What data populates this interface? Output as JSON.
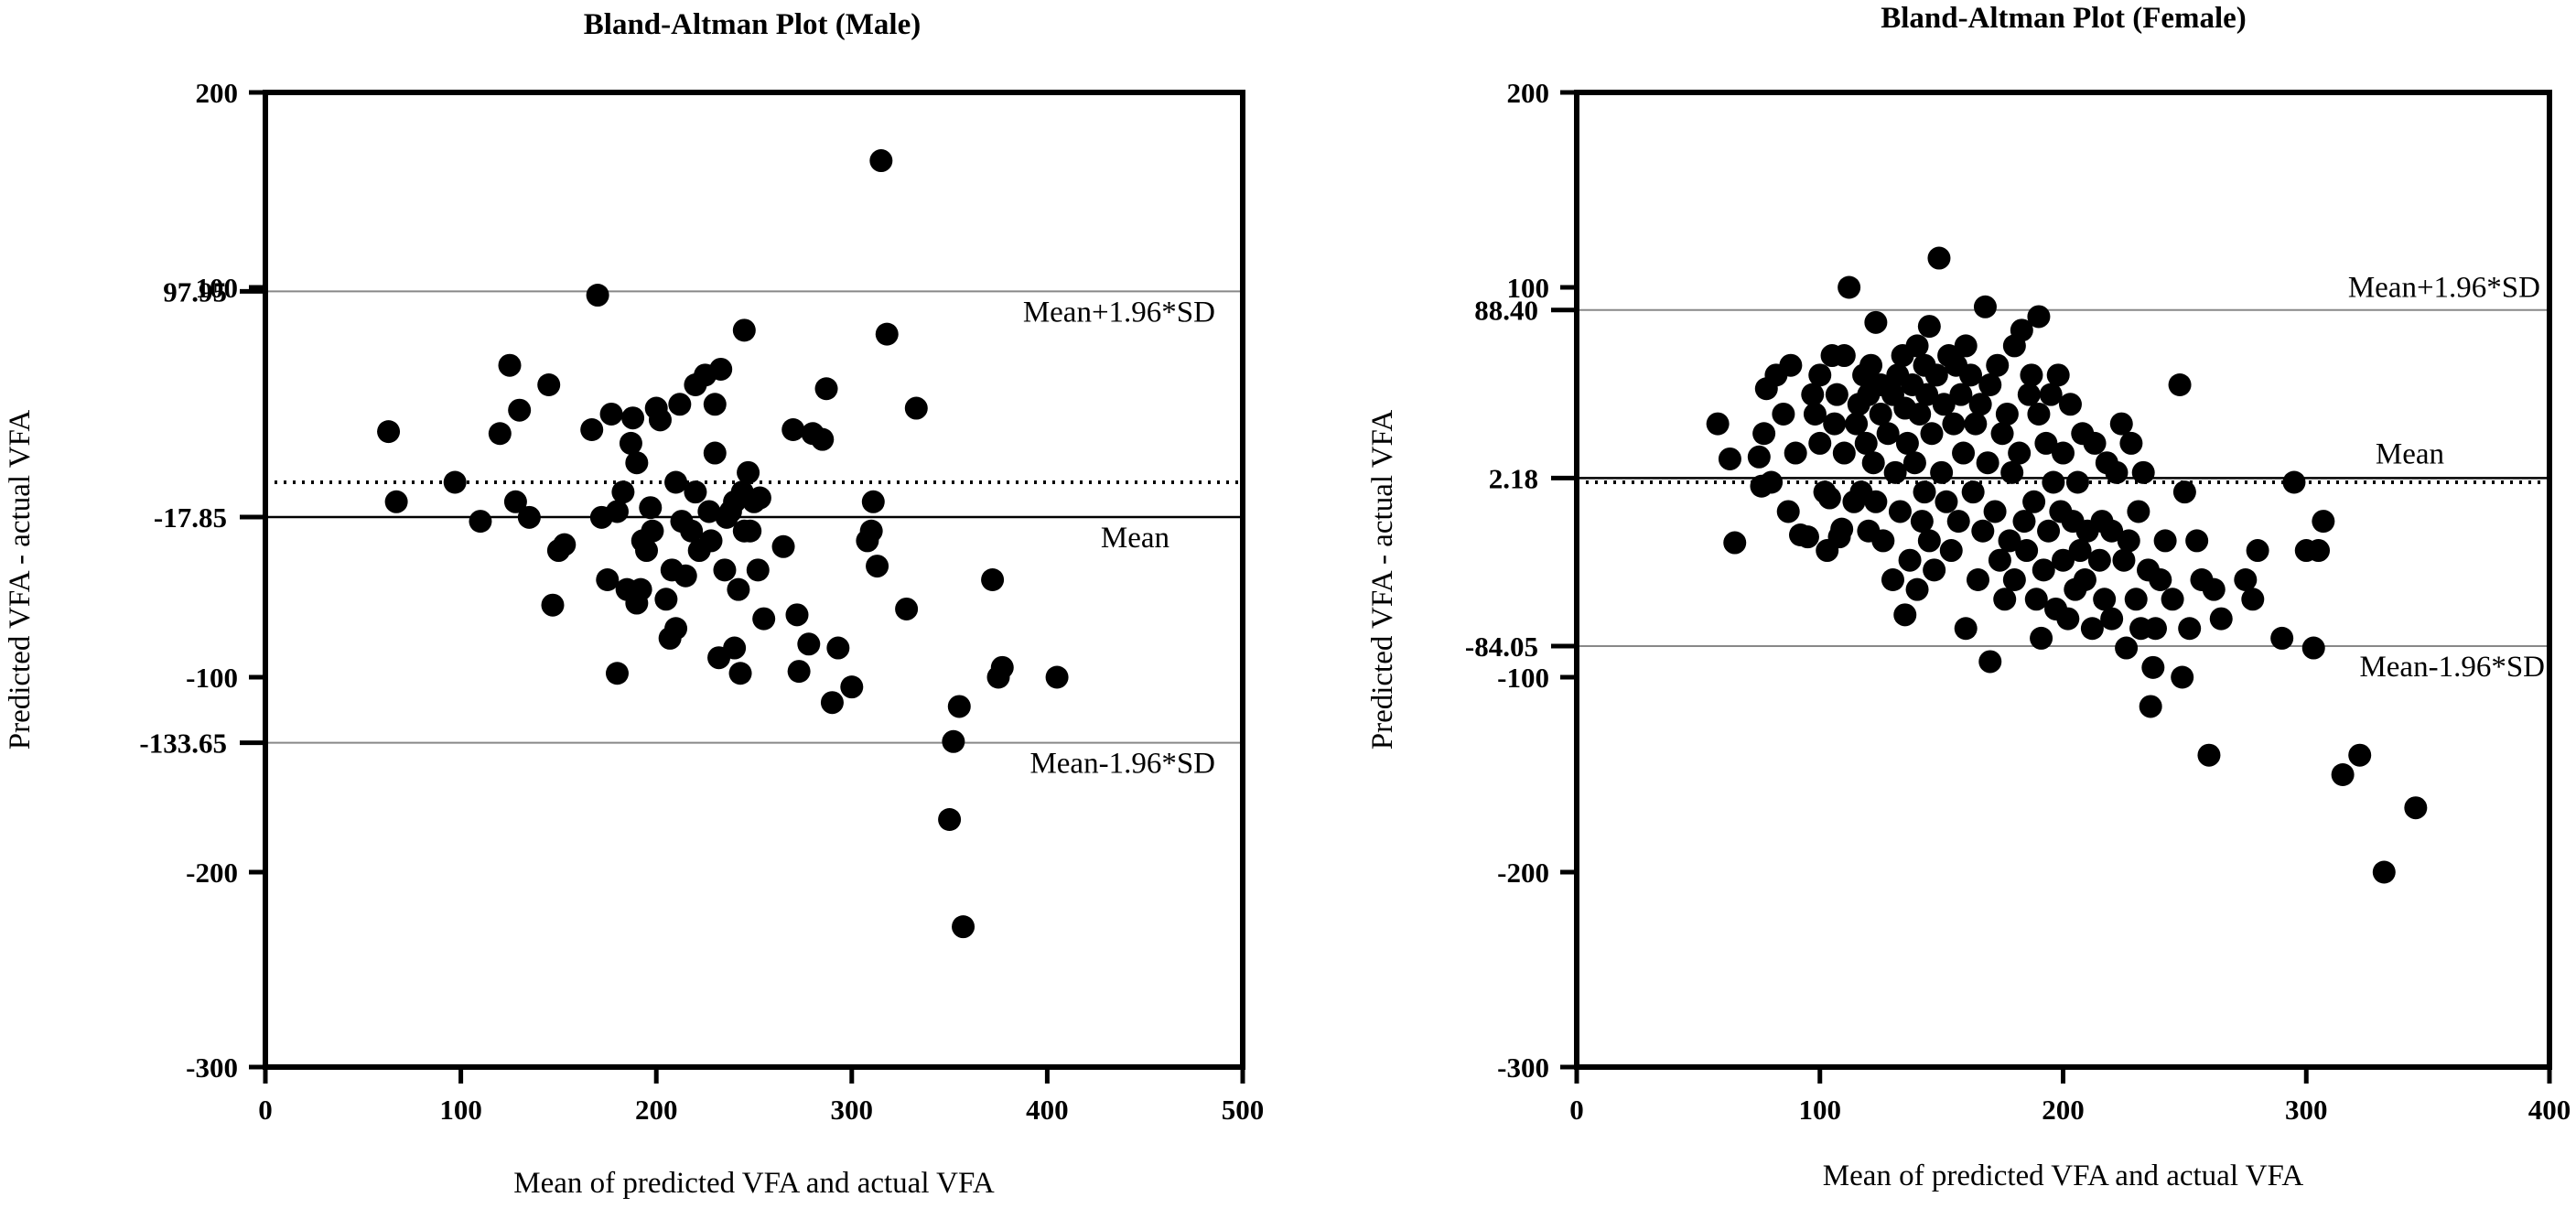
{
  "chart_data": [
    {
      "type": "scatter",
      "title": "Bland-Altman Plot (Male)",
      "xlabel": "Mean of predicted VFA and actual VFA",
      "ylabel": "Predicted VFA - actual VFA",
      "xlim": [
        0,
        500
      ],
      "ylim": [
        -300,
        200
      ],
      "xticks": [
        "0",
        "100",
        "200",
        "300",
        "400",
        "500"
      ],
      "yticks": [
        "-300",
        "-200",
        "-100",
        "100",
        "200"
      ],
      "hlines": [
        {
          "id": "upper",
          "value": 97.95,
          "label": "97.95",
          "text": "Mean+1.96*SD",
          "style": "thin-grey"
        },
        {
          "id": "mean",
          "value": -17.85,
          "label": "-17.85",
          "text": "Mean",
          "style": "solid"
        },
        {
          "id": "lower",
          "value": -133.65,
          "label": "-133.65",
          "text": "Mean-1.96*SD",
          "style": "thin-grey"
        },
        {
          "id": "zero",
          "value": 0,
          "label": "",
          "text": "",
          "style": "dotted"
        }
      ],
      "grid": false,
      "points": [
        [
          63,
          26
        ],
        [
          67,
          -10
        ],
        [
          97,
          0
        ],
        [
          110,
          -20
        ],
        [
          120,
          25
        ],
        [
          125,
          60
        ],
        [
          128,
          -10
        ],
        [
          130,
          37
        ],
        [
          135,
          -18
        ],
        [
          145,
          50
        ],
        [
          147,
          -63
        ],
        [
          150,
          -35
        ],
        [
          153,
          -32
        ],
        [
          167,
          27
        ],
        [
          170,
          96
        ],
        [
          172,
          -18
        ],
        [
          175,
          -50
        ],
        [
          177,
          35
        ],
        [
          180,
          -15
        ],
        [
          180,
          -98
        ],
        [
          183,
          -5
        ],
        [
          185,
          -55
        ],
        [
          187,
          20
        ],
        [
          188,
          33
        ],
        [
          190,
          -62
        ],
        [
          190,
          10
        ],
        [
          192,
          -55
        ],
        [
          193,
          -30
        ],
        [
          195,
          -35
        ],
        [
          197,
          -13
        ],
        [
          198,
          -25
        ],
        [
          200,
          38
        ],
        [
          202,
          32
        ],
        [
          205,
          -60
        ],
        [
          207,
          -80
        ],
        [
          208,
          -45
        ],
        [
          210,
          0
        ],
        [
          210,
          -75
        ],
        [
          212,
          40
        ],
        [
          213,
          -20
        ],
        [
          215,
          -48
        ],
        [
          218,
          -25
        ],
        [
          220,
          50
        ],
        [
          220,
          -5
        ],
        [
          222,
          -35
        ],
        [
          225,
          55
        ],
        [
          227,
          -15
        ],
        [
          228,
          -30
        ],
        [
          230,
          40
        ],
        [
          230,
          15
        ],
        [
          232,
          -90
        ],
        [
          233,
          58
        ],
        [
          235,
          -45
        ],
        [
          236,
          -18
        ],
        [
          238,
          -15
        ],
        [
          240,
          -85
        ],
        [
          240,
          -10
        ],
        [
          242,
          -55
        ],
        [
          243,
          -98
        ],
        [
          244,
          -5
        ],
        [
          245,
          -25
        ],
        [
          245,
          78
        ],
        [
          247,
          5
        ],
        [
          248,
          -25
        ],
        [
          250,
          -10
        ],
        [
          252,
          -45
        ],
        [
          253,
          -8
        ],
        [
          255,
          -70
        ],
        [
          265,
          -33
        ],
        [
          270,
          27
        ],
        [
          272,
          -68
        ],
        [
          273,
          -97
        ],
        [
          278,
          -83
        ],
        [
          280,
          25
        ],
        [
          285,
          22
        ],
        [
          287,
          48
        ],
        [
          290,
          -113
        ],
        [
          293,
          -85
        ],
        [
          300,
          -105
        ],
        [
          308,
          -30
        ],
        [
          310,
          -25
        ],
        [
          311,
          -10
        ],
        [
          313,
          -43
        ],
        [
          315,
          165
        ],
        [
          318,
          76
        ],
        [
          328,
          -65
        ],
        [
          333,
          38
        ],
        [
          350,
          -173
        ],
        [
          352,
          -133
        ],
        [
          355,
          -115
        ],
        [
          357,
          -228
        ],
        [
          372,
          -50
        ],
        [
          375,
          -100
        ],
        [
          377,
          -95
        ],
        [
          405,
          -100
        ]
      ]
    },
    {
      "type": "scatter",
      "title": "Bland-Altman Plot (Female)",
      "xlabel": "Mean of predicted VFA and actual VFA",
      "ylabel": "Predicted VFA - actual VFA",
      "xlim": [
        0,
        400
      ],
      "ylim": [
        -300,
        200
      ],
      "xticks": [
        "0",
        "100",
        "200",
        "300",
        "400"
      ],
      "yticks": [
        "-300",
        "-200",
        "-100",
        "100",
        "200"
      ],
      "hlines": [
        {
          "id": "upper",
          "value": 88.4,
          "label": "88.40",
          "text": "Mean+1.96*SD",
          "style": "thin-grey"
        },
        {
          "id": "mean",
          "value": 2.18,
          "label": "2.18",
          "text": "Mean",
          "style": "solid"
        },
        {
          "id": "lower",
          "value": -84.05,
          "label": "-84.05",
          "text": "Mean-1.96*SD",
          "style": "thin-grey"
        },
        {
          "id": "zero",
          "value": 0,
          "label": "",
          "text": "",
          "style": "dotted"
        }
      ],
      "grid": false,
      "points": [
        [
          58,
          30
        ],
        [
          63,
          12
        ],
        [
          65,
          -31
        ],
        [
          75,
          13
        ],
        [
          76,
          -2
        ],
        [
          77,
          25
        ],
        [
          78,
          48
        ],
        [
          80,
          0
        ],
        [
          82,
          55
        ],
        [
          85,
          35
        ],
        [
          87,
          -15
        ],
        [
          88,
          60
        ],
        [
          90,
          15
        ],
        [
          92,
          -27
        ],
        [
          95,
          -28
        ],
        [
          97,
          45
        ],
        [
          98,
          35
        ],
        [
          100,
          20
        ],
        [
          100,
          55
        ],
        [
          102,
          -5
        ],
        [
          103,
          -35
        ],
        [
          104,
          -8
        ],
        [
          105,
          65
        ],
        [
          106,
          30
        ],
        [
          107,
          45
        ],
        [
          108,
          -28
        ],
        [
          109,
          -24
        ],
        [
          110,
          15
        ],
        [
          110,
          65
        ],
        [
          112,
          100
        ],
        [
          114,
          -10
        ],
        [
          115,
          30
        ],
        [
          116,
          40
        ],
        [
          117,
          -5
        ],
        [
          118,
          55
        ],
        [
          119,
          20
        ],
        [
          120,
          45
        ],
        [
          120,
          -25
        ],
        [
          121,
          60
        ],
        [
          122,
          10
        ],
        [
          123,
          -10
        ],
        [
          123,
          82
        ],
        [
          125,
          35
        ],
        [
          125,
          50
        ],
        [
          126,
          -30
        ],
        [
          128,
          25
        ],
        [
          130,
          45
        ],
        [
          130,
          -50
        ],
        [
          131,
          5
        ],
        [
          132,
          55
        ],
        [
          133,
          -15
        ],
        [
          134,
          65
        ],
        [
          135,
          38
        ],
        [
          135,
          -68
        ],
        [
          136,
          20
        ],
        [
          137,
          -40
        ],
        [
          138,
          50
        ],
        [
          139,
          10
        ],
        [
          140,
          -55
        ],
        [
          140,
          70
        ],
        [
          141,
          35
        ],
        [
          142,
          -20
        ],
        [
          143,
          60
        ],
        [
          143,
          -5
        ],
        [
          144,
          45
        ],
        [
          145,
          -30
        ],
        [
          145,
          80
        ],
        [
          146,
          25
        ],
        [
          147,
          -45
        ],
        [
          148,
          55
        ],
        [
          149,
          115
        ],
        [
          150,
          5
        ],
        [
          151,
          40
        ],
        [
          152,
          -10
        ],
        [
          153,
          65
        ],
        [
          154,
          -35
        ],
        [
          155,
          30
        ],
        [
          156,
          60
        ],
        [
          157,
          -20
        ],
        [
          158,
          45
        ],
        [
          159,
          15
        ],
        [
          160,
          -75
        ],
        [
          160,
          70
        ],
        [
          162,
          55
        ],
        [
          163,
          -5
        ],
        [
          164,
          30
        ],
        [
          165,
          -50
        ],
        [
          166,
          40
        ],
        [
          167,
          -25
        ],
        [
          168,
          90
        ],
        [
          169,
          10
        ],
        [
          170,
          -92
        ],
        [
          170,
          50
        ],
        [
          172,
          -15
        ],
        [
          173,
          60
        ],
        [
          174,
          -40
        ],
        [
          175,
          25
        ],
        [
          176,
          -60
        ],
        [
          177,
          35
        ],
        [
          178,
          -30
        ],
        [
          179,
          5
        ],
        [
          180,
          -50
        ],
        [
          180,
          70
        ],
        [
          182,
          15
        ],
        [
          183,
          78
        ],
        [
          184,
          -20
        ],
        [
          185,
          -35
        ],
        [
          186,
          45
        ],
        [
          187,
          55
        ],
        [
          188,
          -10
        ],
        [
          189,
          -60
        ],
        [
          190,
          35
        ],
        [
          190,
          85
        ],
        [
          191,
          -80
        ],
        [
          192,
          -45
        ],
        [
          193,
          20
        ],
        [
          194,
          -25
        ],
        [
          195,
          45
        ],
        [
          196,
          0
        ],
        [
          197,
          -65
        ],
        [
          198,
          55
        ],
        [
          199,
          -15
        ],
        [
          200,
          -40
        ],
        [
          200,
          15
        ],
        [
          202,
          -70
        ],
        [
          203,
          40
        ],
        [
          204,
          -20
        ],
        [
          205,
          -55
        ],
        [
          206,
          0
        ],
        [
          207,
          -35
        ],
        [
          208,
          25
        ],
        [
          209,
          -50
        ],
        [
          210,
          -25
        ],
        [
          212,
          -75
        ],
        [
          213,
          20
        ],
        [
          215,
          -40
        ],
        [
          216,
          -20
        ],
        [
          217,
          -60
        ],
        [
          218,
          10
        ],
        [
          220,
          -70
        ],
        [
          220,
          -25
        ],
        [
          222,
          5
        ],
        [
          224,
          30
        ],
        [
          225,
          -40
        ],
        [
          226,
          -85
        ],
        [
          227,
          -30
        ],
        [
          228,
          20
        ],
        [
          230,
          -60
        ],
        [
          231,
          -15
        ],
        [
          232,
          -75
        ],
        [
          233,
          5
        ],
        [
          235,
          -45
        ],
        [
          236,
          -115
        ],
        [
          237,
          -95
        ],
        [
          238,
          -75
        ],
        [
          240,
          -50
        ],
        [
          242,
          -30
        ],
        [
          245,
          -60
        ],
        [
          248,
          50
        ],
        [
          249,
          -100
        ],
        [
          250,
          -5
        ],
        [
          252,
          -75
        ],
        [
          255,
          -30
        ],
        [
          257,
          -50
        ],
        [
          260,
          -140
        ],
        [
          262,
          -55
        ],
        [
          265,
          -70
        ],
        [
          275,
          -50
        ],
        [
          278,
          -60
        ],
        [
          280,
          -35
        ],
        [
          290,
          -80
        ],
        [
          295,
          0
        ],
        [
          300,
          -35
        ],
        [
          303,
          -85
        ],
        [
          305,
          -35
        ],
        [
          307,
          -20
        ],
        [
          315,
          -150
        ],
        [
          322,
          -140
        ],
        [
          332,
          -200
        ],
        [
          345,
          -167
        ]
      ]
    }
  ]
}
